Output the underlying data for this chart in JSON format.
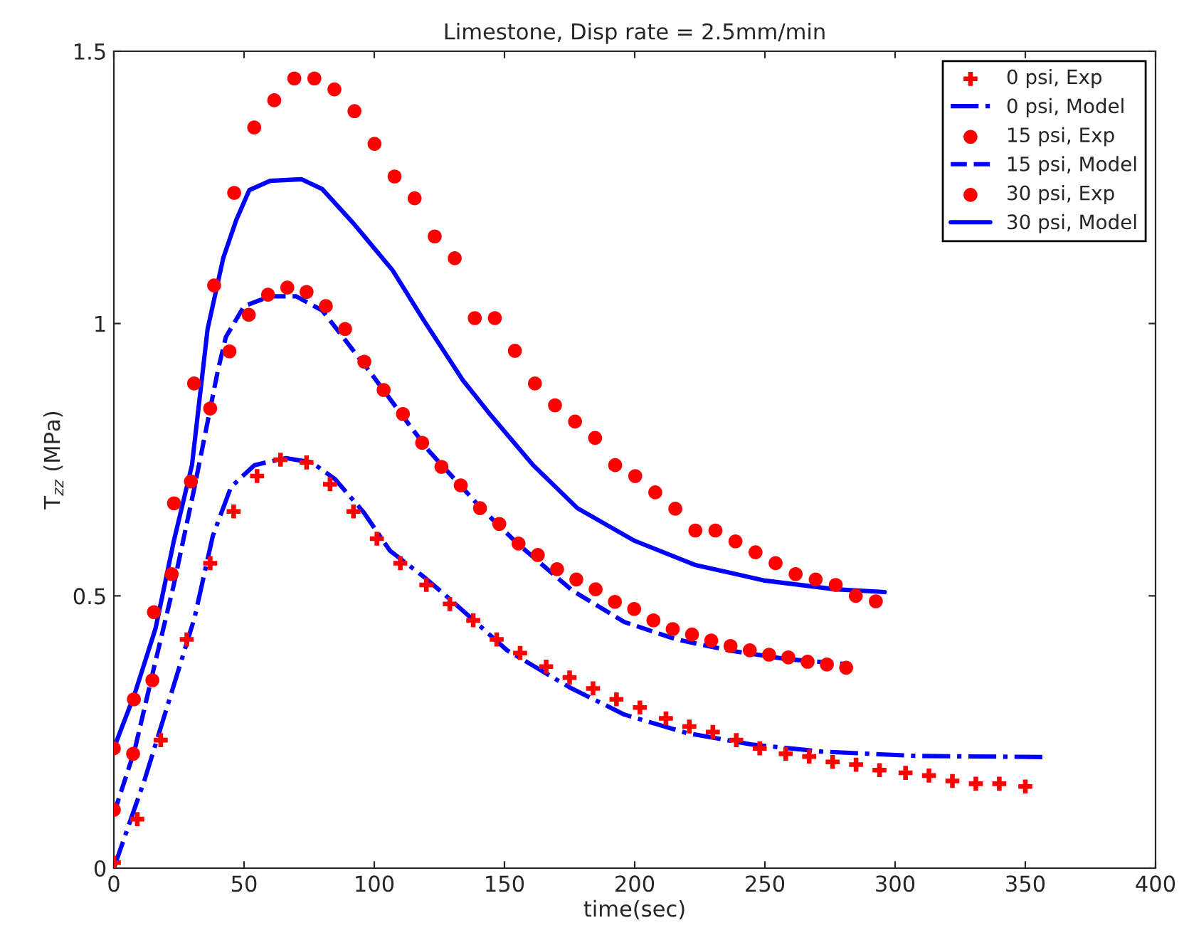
{
  "chart_data": {
    "type": "scatter",
    "title": "Limestone, Disp rate = 2.5mm/min",
    "xlabel": "time(sec)",
    "ylabel": "T$_{zz}$ (MPa)",
    "xlim": [
      0,
      400
    ],
    "ylim": [
      0,
      1.5
    ],
    "xticks": [
      0,
      50,
      100,
      150,
      200,
      250,
      300,
      350,
      400
    ],
    "yticks": [
      0,
      0.5,
      1,
      1.5
    ],
    "grid": false,
    "legend": "top right",
    "series": [
      {
        "name": "0 psi, Exp",
        "marker": "cross",
        "color": "#ff0000",
        "x": [
          0,
          9,
          18,
          28,
          37,
          46,
          55,
          64,
          74,
          83,
          92,
          101,
          110,
          120,
          129,
          138,
          147,
          156,
          166,
          175,
          184,
          193,
          202,
          212,
          221,
          230,
          239,
          248,
          258,
          267,
          276,
          285,
          294,
          304,
          313,
          322,
          331,
          340,
          350
        ],
        "values": [
          0.01,
          0.09,
          0.235,
          0.42,
          0.56,
          0.655,
          0.72,
          0.75,
          0.745,
          0.705,
          0.655,
          0.605,
          0.56,
          0.52,
          0.485,
          0.455,
          0.42,
          0.395,
          0.37,
          0.35,
          0.33,
          0.31,
          0.295,
          0.275,
          0.26,
          0.25,
          0.235,
          0.22,
          0.21,
          0.205,
          0.195,
          0.19,
          0.18,
          0.175,
          0.17,
          0.16,
          0.155,
          0.155,
          0.15
        ]
      },
      {
        "name": "0 psi, Model",
        "type": "line",
        "line_style": "dashdot",
        "color": "#0000ff",
        "x": [
          0,
          12,
          22,
          31,
          38,
          45,
          54,
          66,
          76,
          85,
          96,
          106,
          119,
          130,
          151,
          175,
          196,
          220,
          245,
          272,
          308,
          357
        ],
        "values": [
          0.0,
          0.165,
          0.32,
          0.46,
          0.61,
          0.7,
          0.74,
          0.753,
          0.745,
          0.714,
          0.653,
          0.583,
          0.535,
          0.49,
          0.4,
          0.332,
          0.282,
          0.248,
          0.227,
          0.214,
          0.206,
          0.204
        ]
      },
      {
        "name": "15 psi, Exp",
        "marker": "circle",
        "color": "#ff0000",
        "x": [
          0,
          7.4,
          14.8,
          22.2,
          29.6,
          37,
          44.4,
          51.8,
          59.2,
          66.6,
          74,
          81.4,
          88.8,
          96.2,
          103.6,
          111,
          118.4,
          125.8,
          133.2,
          140.6,
          148,
          155.4,
          162.8,
          170.2,
          177.6,
          185,
          192.4,
          199.8,
          207.2,
          214.6,
          222,
          229.4,
          236.8,
          244.2,
          251.6,
          259,
          266.4,
          273.8,
          281.2
        ],
        "values": [
          0.107,
          0.21,
          0.345,
          0.54,
          0.71,
          0.844,
          0.949,
          1.016,
          1.053,
          1.066,
          1.058,
          1.032,
          0.99,
          0.93,
          0.878,
          0.834,
          0.781,
          0.737,
          0.703,
          0.661,
          0.632,
          0.596,
          0.575,
          0.549,
          0.53,
          0.512,
          0.489,
          0.476,
          0.455,
          0.439,
          0.429,
          0.418,
          0.408,
          0.4,
          0.392,
          0.387,
          0.379,
          0.374,
          0.368
        ]
      },
      {
        "name": "15 psi, Model",
        "type": "line",
        "line_style": "dashed",
        "color": "#0000ff",
        "x": [
          0,
          8,
          15,
          23,
          31,
          40,
          43,
          50,
          60,
          70,
          80,
          88,
          99,
          110,
          121,
          141,
          155,
          176,
          196,
          216,
          236,
          258,
          283
        ],
        "values": [
          0.1,
          0.217,
          0.36,
          0.52,
          0.7,
          0.915,
          0.975,
          1.032,
          1.05,
          1.05,
          1.024,
          0.975,
          0.907,
          0.836,
          0.766,
          0.661,
          0.596,
          0.51,
          0.452,
          0.42,
          0.4,
          0.384,
          0.374
        ]
      },
      {
        "name": "30 psi, Exp",
        "marker": "circle",
        "color": "#ff0000",
        "x": [
          0,
          7.7,
          15.4,
          23.1,
          30.8,
          38.5,
          46.2,
          53.9,
          61.6,
          69.3,
          77,
          84.7,
          92.4,
          100.1,
          107.8,
          115.5,
          123.2,
          130.9,
          138.6,
          146.3,
          154,
          161.7,
          169.4,
          177.1,
          184.8,
          192.5,
          200.2,
          207.9,
          215.6,
          223.3,
          231,
          238.7,
          246.4,
          254.1,
          261.8,
          269.5,
          277.2,
          284.9,
          292.6
        ],
        "values": [
          0.22,
          0.31,
          0.47,
          0.67,
          0.89,
          1.07,
          1.24,
          1.36,
          1.41,
          1.45,
          1.45,
          1.43,
          1.39,
          1.33,
          1.27,
          1.23,
          1.16,
          1.12,
          1.01,
          1.01,
          0.95,
          0.89,
          0.85,
          0.82,
          0.79,
          0.74,
          0.72,
          0.69,
          0.66,
          0.62,
          0.62,
          0.6,
          0.58,
          0.56,
          0.54,
          0.53,
          0.52,
          0.5,
          0.49
        ]
      },
      {
        "name": "30 psi, Model",
        "type": "line",
        "line_style": "solid",
        "color": "#0000ff",
        "x": [
          0,
          8,
          16,
          23,
          30,
          36,
          42,
          47,
          52,
          60,
          72,
          80,
          92,
          107,
          119,
          134,
          144,
          161,
          178,
          200,
          223,
          250,
          277,
          296
        ],
        "values": [
          0.22,
          0.32,
          0.44,
          0.6,
          0.74,
          0.99,
          1.12,
          1.19,
          1.245,
          1.262,
          1.265,
          1.247,
          1.184,
          1.098,
          1.006,
          0.896,
          0.836,
          0.74,
          0.661,
          0.601,
          0.557,
          0.528,
          0.512,
          0.507
        ]
      }
    ]
  }
}
